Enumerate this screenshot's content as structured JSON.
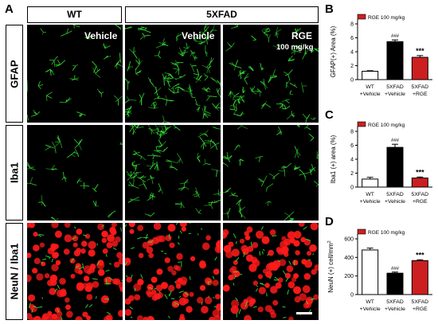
{
  "panel_a": {
    "letter": "A",
    "col_headers": {
      "wt": "WT",
      "fad": "5XFAD"
    },
    "row_labels": [
      "GFAP",
      "Iba1",
      "NeuN / Iba1"
    ],
    "tile_labels": {
      "c1": "Vehicle",
      "c2": "Vehicle",
      "c3": "RGE",
      "c3b": "100 mg/kg"
    }
  },
  "colors": {
    "white": "#ffffff",
    "black": "#000000",
    "red": "#cc1f1f",
    "green": "#33dd33",
    "cell_red": "#ff1a1a"
  },
  "chart_data": [
    {
      "panel": "B",
      "type": "bar",
      "legend": "RGE 100 mg/kg",
      "ylabel": "GFAP(+) Area (%)",
      "ylim": [
        0,
        8
      ],
      "yticks": [
        "0",
        "2",
        "4",
        "6",
        "8"
      ],
      "categories": [
        "WT\n+Vehicle",
        "5XFAD\n+Vehicle",
        "5XFAD\n+RGE"
      ],
      "values": [
        1.2,
        5.45,
        3.2
      ],
      "errors": [
        0.08,
        0.25,
        0.25
      ],
      "annotations": [
        "",
        "###",
        "***"
      ],
      "bar_colors": [
        "#ffffff",
        "#000000",
        "#cc1f1f"
      ]
    },
    {
      "panel": "C",
      "type": "bar",
      "legend": "RGE 100 mg/kg",
      "ylabel": "Iba1 (+) area (%)",
      "ylim": [
        0,
        8
      ],
      "yticks": [
        "0",
        "2",
        "4",
        "6",
        "8"
      ],
      "categories": [
        "WT\n+Vehicle",
        "5XFAD\n+Vehicle",
        "5XFAD\n+RGE"
      ],
      "values": [
        1.15,
        5.7,
        1.3
      ],
      "errors": [
        0.25,
        0.45,
        0.15
      ],
      "annotations": [
        "",
        "###",
        "***"
      ],
      "bar_colors": [
        "#ffffff",
        "#000000",
        "#cc1f1f"
      ]
    },
    {
      "panel": "D",
      "type": "bar",
      "legend": "RGE 100 mg/kg",
      "ylabel": "NeuN (+) cell/mm",
      "ylabel_sup": "2",
      "ylim": [
        0,
        600
      ],
      "yticks": [
        "0",
        "200",
        "400",
        "600"
      ],
      "categories": [
        "WT\n+Vehicle",
        "5XFAD\n+Vehicle",
        "5XFAD\n+RGE"
      ],
      "values": [
        480,
        230,
        365
      ],
      "errors": [
        20,
        12,
        10
      ],
      "annotations": [
        "",
        "###",
        "***"
      ],
      "bar_colors": [
        "#ffffff",
        "#000000",
        "#cc1f1f"
      ]
    }
  ]
}
